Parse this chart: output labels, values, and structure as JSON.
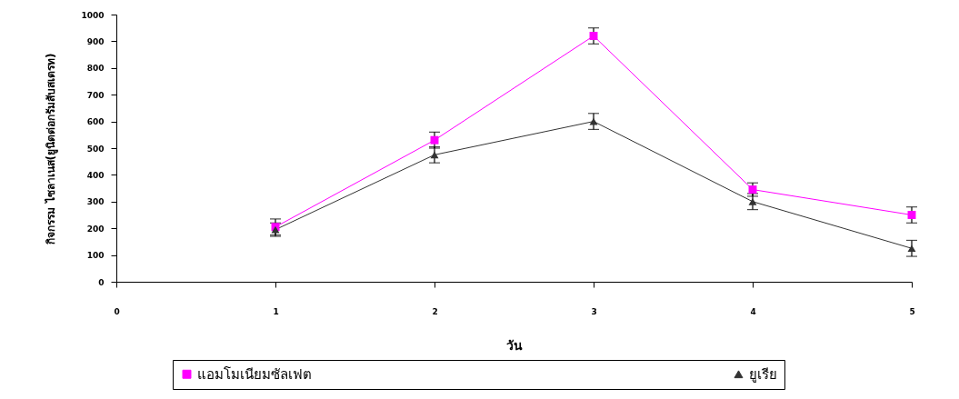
{
  "chart_data": {
    "type": "line",
    "xlabel": "วัน",
    "ylabel": "กิจกรรม ไซลาเนส(ยูนิตต่อกรัมสับสเตรท)",
    "x": [
      1,
      2,
      3,
      4,
      5
    ],
    "series": [
      {
        "name": "แอมโมเนียมซัลเฟต",
        "color": "#ff00ff",
        "marker": "square",
        "values": [
          205,
          530,
          920,
          345,
          250
        ],
        "errors": [
          30,
          30,
          30,
          25,
          30
        ]
      },
      {
        "name": "ยูเรีย",
        "color": "#333333",
        "marker": "triangle",
        "values": [
          195,
          475,
          600,
          300,
          125
        ],
        "errors": [
          25,
          30,
          30,
          30,
          30
        ]
      }
    ],
    "xlim": [
      0,
      5
    ],
    "xticks": [
      0,
      1,
      2,
      3,
      4,
      5
    ],
    "ylim": [
      0,
      1000
    ],
    "yticks": [
      0,
      100,
      200,
      300,
      400,
      500,
      600,
      700,
      800,
      900,
      1000
    ],
    "legend": "bottom",
    "line_style": "solid"
  }
}
